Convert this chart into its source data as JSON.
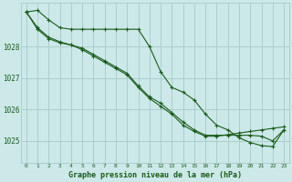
{
  "title": "Graphe pression niveau de la mer (hPa)",
  "background_color": "#cce8e8",
  "grid_color": "#aacece",
  "line_color": "#1a5c1a",
  "x_labels": [
    "0",
    "1",
    "2",
    "3",
    "4",
    "5",
    "6",
    "7",
    "8",
    "9",
    "10",
    "11",
    "12",
    "13",
    "14",
    "15",
    "16",
    "17",
    "18",
    "19",
    "20",
    "21",
    "22",
    "23"
  ],
  "ylim": [
    1024.3,
    1029.4
  ],
  "yticks": [
    1025,
    1026,
    1027,
    1028
  ],
  "series1": [
    1029.1,
    1029.15,
    1028.85,
    1028.6,
    1028.55,
    1028.55,
    1028.55,
    1028.55,
    1028.55,
    1028.55,
    1028.55,
    1028.0,
    1027.2,
    1026.7,
    1026.55,
    1026.3,
    1025.85,
    1025.5,
    1025.35,
    1025.1,
    1024.95,
    1024.85,
    1024.82,
    1025.35
  ],
  "series2": [
    1029.1,
    1028.6,
    1028.3,
    1028.15,
    1028.05,
    1027.9,
    1027.7,
    1027.5,
    1027.3,
    1027.1,
    1026.7,
    1026.35,
    1026.1,
    1025.85,
    1025.5,
    1025.3,
    1025.15,
    1025.15,
    1025.2,
    1025.25,
    1025.3,
    1025.35,
    1025.4,
    1025.45
  ],
  "series3": [
    1029.1,
    1028.55,
    1028.25,
    1028.12,
    1028.05,
    1027.95,
    1027.75,
    1027.55,
    1027.35,
    1027.15,
    1026.75,
    1026.4,
    1026.2,
    1025.9,
    1025.6,
    1025.35,
    1025.18,
    1025.18,
    1025.18,
    1025.18,
    1025.18,
    1025.15,
    1025.0,
    1025.35
  ]
}
